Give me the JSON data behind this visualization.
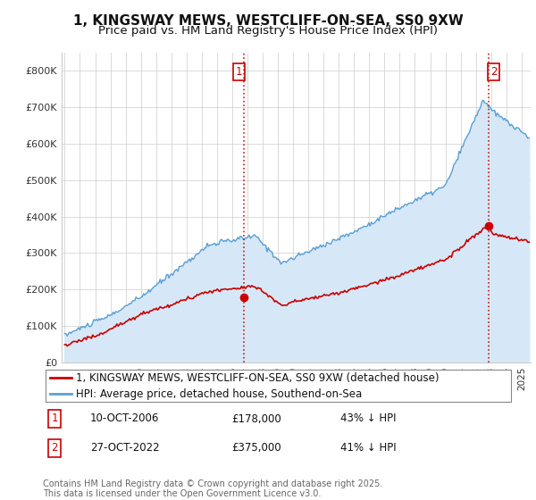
{
  "title": "1, KINGSWAY MEWS, WESTCLIFF-ON-SEA, SS0 9XW",
  "subtitle": "Price paid vs. HM Land Registry's House Price Index (HPI)",
  "ylim": [
    0,
    850000
  ],
  "yticks": [
    0,
    100000,
    200000,
    300000,
    400000,
    500000,
    600000,
    700000,
    800000
  ],
  "ytick_labels": [
    "£0",
    "£100K",
    "£200K",
    "£300K",
    "£400K",
    "£500K",
    "£600K",
    "£700K",
    "£800K"
  ],
  "hpi_color": "#5a9fd4",
  "hpi_fill_color": "#d6e8f7",
  "price_color": "#cc0000",
  "vline_color": "#cc0000",
  "background_color": "#ffffff",
  "grid_color": "#cccccc",
  "purchase1_date": 2006.79,
  "purchase1_price": 178000,
  "purchase1_label": "1",
  "purchase2_date": 2022.82,
  "purchase2_price": 375000,
  "purchase2_label": "2",
  "legend_line1": "1, KINGSWAY MEWS, WESTCLIFF-ON-SEA, SS0 9XW (detached house)",
  "legend_line2": "HPI: Average price, detached house, Southend-on-Sea",
  "table_row1": [
    "1",
    "10-OCT-2006",
    "£178,000",
    "43% ↓ HPI"
  ],
  "table_row2": [
    "2",
    "27-OCT-2022",
    "£375,000",
    "41% ↓ HPI"
  ],
  "footnote": "Contains HM Land Registry data © Crown copyright and database right 2025.\nThis data is licensed under the Open Government Licence v3.0.",
  "title_fontsize": 11,
  "subtitle_fontsize": 9.5,
  "tick_fontsize": 8,
  "legend_fontsize": 8.5,
  "table_fontsize": 8.5,
  "footnote_fontsize": 7
}
